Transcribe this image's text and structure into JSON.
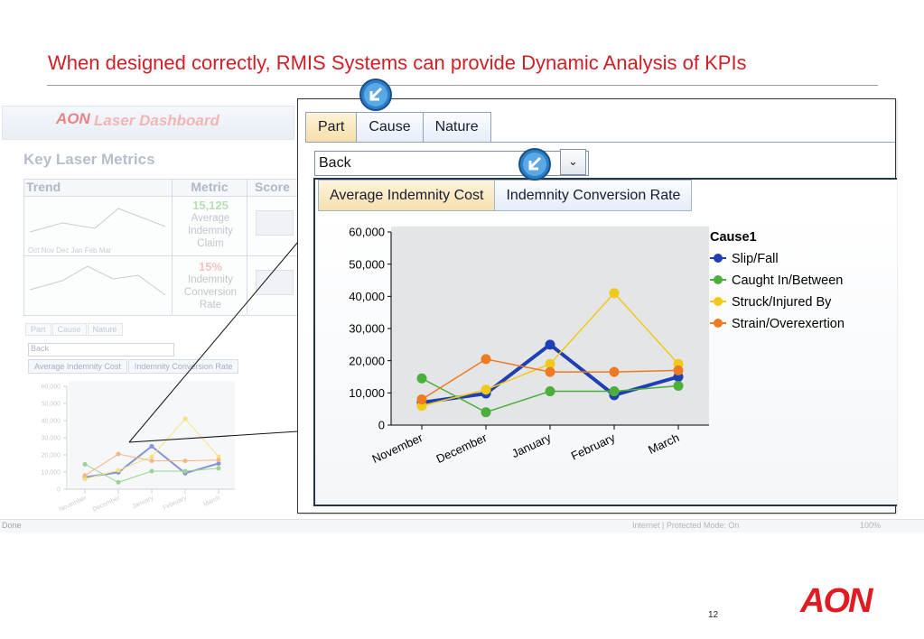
{
  "slide": {
    "title": "When designed correctly, RMIS Systems can provide Dynamic Analysis of KPIs",
    "page_number": "12",
    "logo_text": "AON"
  },
  "background_dashboard": {
    "logo": "AON",
    "app_name": "Laser Dashboard",
    "metrics_title": "Key Laser Metrics",
    "table_headers": [
      "Trend",
      "Metric",
      "Score"
    ],
    "months": "Oct  Nov  Dec  Jan  Feb  Mar",
    "metric1_value": "15,125",
    "metric1_label": "Average Indemnity Claim",
    "metric2_value": "15%",
    "metric2_label": "Indemnity Conversion Rate",
    "mini_tabs": [
      "Part",
      "Cause",
      "Nature"
    ],
    "mini_select": "Back",
    "mini_subtabs": [
      "Average Indemnity Cost",
      "Indemnity Conversion Rate"
    ],
    "status_left": "Done",
    "status_zone": "Internet | Protected Mode: On",
    "status_zoom": "100%"
  },
  "panel": {
    "tabs": [
      "Part",
      "Cause",
      "Nature"
    ],
    "active_tab": "Part",
    "select_value": "Back",
    "subtabs": [
      "Average Indemnity Cost",
      "Indemnity Conversion Rate"
    ],
    "active_subtab": "Average Indemnity Cost"
  },
  "chart_data": {
    "type": "line",
    "categories": [
      "November",
      "December",
      "January",
      "February",
      "March"
    ],
    "ylim": [
      0,
      60000
    ],
    "yticks": [
      "0",
      "10,000",
      "20,000",
      "30,000",
      "40,000",
      "50,000",
      "60,000"
    ],
    "legend_title": "Cause1",
    "legend_position": "right",
    "grid": false,
    "series": [
      {
        "name": "Slip/Fall",
        "color": "#1f3fb5",
        "values": [
          7000,
          9800,
          25000,
          9300,
          15000
        ],
        "bold": true
      },
      {
        "name": "Caught In/Between",
        "color": "#4caf3c",
        "values": [
          14500,
          4000,
          10500,
          10500,
          12200
        ]
      },
      {
        "name": "Struck/Injured By",
        "color": "#f2c918",
        "values": [
          6000,
          11000,
          19000,
          41000,
          19000
        ]
      },
      {
        "name": "Strain/Overexertion",
        "color": "#ee7a22",
        "values": [
          8000,
          20500,
          16500,
          16500,
          17000
        ]
      }
    ]
  }
}
